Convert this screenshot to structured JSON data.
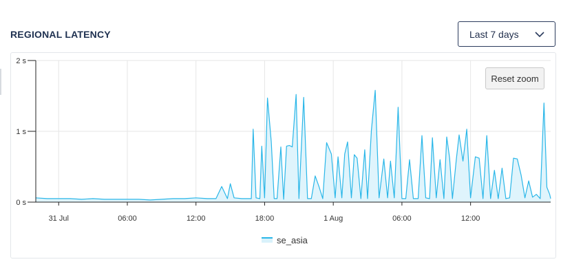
{
  "header": {
    "title": "REGIONAL LATENCY",
    "range_select": {
      "value": "Last 7 days",
      "icon": "chevron-down-icon"
    }
  },
  "toolbar": {
    "reset_zoom_label": "Reset zoom"
  },
  "colors": {
    "line": "#29b6e8",
    "fill": "#d9f2fb",
    "grid": "#e6e6e6",
    "axis": "#222222"
  },
  "chart_data": {
    "type": "area",
    "title": "",
    "xlabel": "",
    "ylabel": "",
    "x_range": [
      "2024-07-30T22:00",
      "2024-08-01T19:00"
    ],
    "ylim": [
      0,
      2
    ],
    "y_ticks": [
      {
        "value": 0,
        "label": "0 s"
      },
      {
        "value": 1,
        "label": "1 s"
      },
      {
        "value": 2,
        "label": "2 s"
      }
    ],
    "x_ticks": [
      {
        "t": "2024-07-31T00:00",
        "label": "31 Jul"
      },
      {
        "t": "2024-07-31T06:00",
        "label": "06:00"
      },
      {
        "t": "2024-07-31T12:00",
        "label": "12:00"
      },
      {
        "t": "2024-07-31T18:00",
        "label": "18:00"
      },
      {
        "t": "2024-08-01T00:00",
        "label": "1 Aug"
      },
      {
        "t": "2024-08-01T06:00",
        "label": "06:00"
      },
      {
        "t": "2024-08-01T12:00",
        "label": "12:00"
      }
    ],
    "grid": true,
    "legend_position": "bottom-center",
    "series": [
      {
        "name": "se_asia",
        "points": [
          [
            "2024-07-30T22:00",
            0.06
          ],
          [
            "2024-07-30T23:00",
            0.05
          ],
          [
            "2024-07-31T00:00",
            0.05
          ],
          [
            "2024-07-31T01:00",
            0.05
          ],
          [
            "2024-07-31T02:00",
            0.04
          ],
          [
            "2024-07-31T03:00",
            0.05
          ],
          [
            "2024-07-31T04:00",
            0.04
          ],
          [
            "2024-07-31T05:00",
            0.04
          ],
          [
            "2024-07-31T06:00",
            0.04
          ],
          [
            "2024-07-31T07:00",
            0.04
          ],
          [
            "2024-07-31T08:00",
            0.03
          ],
          [
            "2024-07-31T09:00",
            0.04
          ],
          [
            "2024-07-31T10:00",
            0.05
          ],
          [
            "2024-07-31T11:00",
            0.05
          ],
          [
            "2024-07-31T12:00",
            0.06
          ],
          [
            "2024-07-31T13:00",
            0.05
          ],
          [
            "2024-07-31T13:45",
            0.05
          ],
          [
            "2024-07-31T14:15",
            0.22
          ],
          [
            "2024-07-31T14:45",
            0.05
          ],
          [
            "2024-07-31T15:00",
            0.26
          ],
          [
            "2024-07-31T15:20",
            0.06
          ],
          [
            "2024-07-31T16:00",
            0.05
          ],
          [
            "2024-07-31T16:30",
            0.05
          ],
          [
            "2024-07-31T16:50",
            0.05
          ],
          [
            "2024-07-31T17:00",
            1.03
          ],
          [
            "2024-07-31T17:15",
            0.06
          ],
          [
            "2024-07-31T17:35",
            0.05
          ],
          [
            "2024-07-31T17:45",
            0.79
          ],
          [
            "2024-07-31T18:00",
            0.06
          ],
          [
            "2024-07-31T18:15",
            1.47
          ],
          [
            "2024-07-31T18:35",
            0.85
          ],
          [
            "2024-07-31T18:50",
            0.05
          ],
          [
            "2024-07-31T19:05",
            0.05
          ],
          [
            "2024-07-31T19:25",
            0.78
          ],
          [
            "2024-07-31T19:40",
            0.04
          ],
          [
            "2024-07-31T19:55",
            0.79
          ],
          [
            "2024-07-31T20:10",
            0.8
          ],
          [
            "2024-07-31T20:25",
            0.78
          ],
          [
            "2024-07-31T20:45",
            1.52
          ],
          [
            "2024-07-31T21:00",
            0.05
          ],
          [
            "2024-07-31T21:25",
            1.48
          ],
          [
            "2024-07-31T21:45",
            0.05
          ],
          [
            "2024-07-31T22:05",
            0.05
          ],
          [
            "2024-07-31T22:25",
            0.37
          ],
          [
            "2024-07-31T22:45",
            0.22
          ],
          [
            "2024-07-31T23:05",
            0.05
          ],
          [
            "2024-07-31T23:25",
            0.84
          ],
          [
            "2024-07-31T23:50",
            0.68
          ],
          [
            "2024-08-01T00:10",
            0.06
          ],
          [
            "2024-08-01T00:25",
            0.64
          ],
          [
            "2024-08-01T00:45",
            0.06
          ],
          [
            "2024-08-01T01:00",
            0.68
          ],
          [
            "2024-08-01T01:15",
            0.85
          ],
          [
            "2024-08-01T01:35",
            0.06
          ],
          [
            "2024-08-01T01:50",
            0.67
          ],
          [
            "2024-08-01T02:05",
            0.62
          ],
          [
            "2024-08-01T02:25",
            0.05
          ],
          [
            "2024-08-01T02:45",
            0.74
          ],
          [
            "2024-08-01T03:00",
            0.05
          ],
          [
            "2024-08-01T03:20",
            1.02
          ],
          [
            "2024-08-01T03:40",
            1.58
          ],
          [
            "2024-08-01T04:00",
            0.06
          ],
          [
            "2024-08-01T04:25",
            0.61
          ],
          [
            "2024-08-01T04:45",
            0.06
          ],
          [
            "2024-08-01T05:00",
            0.58
          ],
          [
            "2024-08-01T05:20",
            0.06
          ],
          [
            "2024-08-01T05:40",
            1.34
          ],
          [
            "2024-08-01T06:00",
            0.05
          ],
          [
            "2024-08-01T06:20",
            0.05
          ],
          [
            "2024-08-01T06:40",
            0.6
          ],
          [
            "2024-08-01T07:00",
            0.05
          ],
          [
            "2024-08-01T07:25",
            0.05
          ],
          [
            "2024-08-01T07:45",
            0.94
          ],
          [
            "2024-08-01T08:05",
            0.06
          ],
          [
            "2024-08-01T08:25",
            0.05
          ],
          [
            "2024-08-01T08:40",
            0.91
          ],
          [
            "2024-08-01T09:00",
            0.06
          ],
          [
            "2024-08-01T09:20",
            0.6
          ],
          [
            "2024-08-01T09:40",
            0.05
          ],
          [
            "2024-08-01T09:55",
            0.92
          ],
          [
            "2024-08-01T10:10",
            0.62
          ],
          [
            "2024-08-01T10:25",
            0.05
          ],
          [
            "2024-08-01T10:45",
            0.6
          ],
          [
            "2024-08-01T11:00",
            0.95
          ],
          [
            "2024-08-01T11:20",
            0.58
          ],
          [
            "2024-08-01T11:40",
            1.03
          ],
          [
            "2024-08-01T12:00",
            0.06
          ],
          [
            "2024-08-01T12:25",
            0.64
          ],
          [
            "2024-08-01T12:45",
            0.62
          ],
          [
            "2024-08-01T13:05",
            0.05
          ],
          [
            "2024-08-01T13:25",
            0.94
          ],
          [
            "2024-08-01T13:45",
            0.05
          ],
          [
            "2024-08-01T14:05",
            0.45
          ],
          [
            "2024-08-01T14:25",
            0.05
          ],
          [
            "2024-08-01T14:45",
            0.48
          ],
          [
            "2024-08-01T15:05",
            0.05
          ],
          [
            "2024-08-01T15:25",
            0.06
          ],
          [
            "2024-08-01T15:45",
            0.62
          ],
          [
            "2024-08-01T16:05",
            0.61
          ],
          [
            "2024-08-01T16:25",
            0.38
          ],
          [
            "2024-08-01T16:45",
            0.06
          ],
          [
            "2024-08-01T17:05",
            0.3
          ],
          [
            "2024-08-01T17:25",
            0.07
          ],
          [
            "2024-08-01T17:45",
            0.11
          ],
          [
            "2024-08-01T18:05",
            0.05
          ],
          [
            "2024-08-01T18:25",
            1.4
          ],
          [
            "2024-08-01T18:40",
            0.21
          ],
          [
            "2024-08-01T18:55",
            0.11
          ],
          [
            "2024-08-01T19:00",
            0.05
          ]
        ]
      }
    ]
  }
}
